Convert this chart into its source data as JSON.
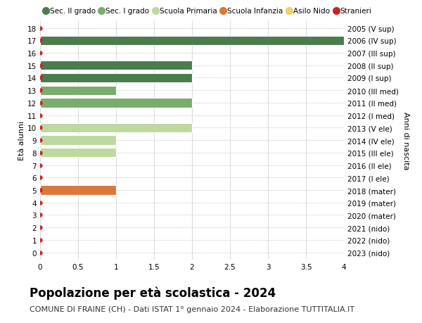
{
  "title": "Popolazione per età scolastica - 2024",
  "subtitle": "COMUNE DI FRAINE (CH) - Dati ISTAT 1° gennaio 2024 - Elaborazione TUTTITALIA.IT",
  "ylabel_left": "Età alunni",
  "ylabel_right": "Anni di nascita",
  "xlim": [
    0,
    4.0
  ],
  "xticks": [
    0,
    0.5,
    1.0,
    1.5,
    2.0,
    2.5,
    3.0,
    3.5,
    4.0
  ],
  "ages": [
    0,
    1,
    2,
    3,
    4,
    5,
    6,
    7,
    8,
    9,
    10,
    11,
    12,
    13,
    14,
    15,
    16,
    17,
    18
  ],
  "right_labels": [
    "2023 (nido)",
    "2022 (nido)",
    "2021 (nido)",
    "2020 (mater)",
    "2019 (mater)",
    "2018 (mater)",
    "2017 (I ele)",
    "2016 (II ele)",
    "2015 (III ele)",
    "2014 (IV ele)",
    "2013 (V ele)",
    "2012 (I med)",
    "2011 (II med)",
    "2010 (III med)",
    "2009 (I sup)",
    "2008 (II sup)",
    "2007 (III sup)",
    "2006 (IV sup)",
    "2005 (V sup)"
  ],
  "bars": [
    {
      "age": 17,
      "value": 4.0,
      "color": "#4a7c4e"
    },
    {
      "age": 15,
      "value": 2.0,
      "color": "#4a7c4e"
    },
    {
      "age": 14,
      "value": 2.0,
      "color": "#4a7c4e"
    },
    {
      "age": 13,
      "value": 1.0,
      "color": "#7aac6e"
    },
    {
      "age": 12,
      "value": 2.0,
      "color": "#7aac6e"
    },
    {
      "age": 10,
      "value": 2.0,
      "color": "#bdd9a0"
    },
    {
      "age": 9,
      "value": 1.0,
      "color": "#bdd9a0"
    },
    {
      "age": 8,
      "value": 1.0,
      "color": "#bdd9a0"
    },
    {
      "age": 5,
      "value": 1.0,
      "color": "#d9793b"
    }
  ],
  "stranieri_ages": [
    0,
    1,
    2,
    3,
    4,
    5,
    6,
    7,
    8,
    9,
    10,
    11,
    12,
    13,
    14,
    15,
    16,
    17,
    18
  ],
  "stranieri_color": "#cc2222",
  "legend_entries": [
    {
      "label": "Sec. II grado",
      "color": "#4a7c4e"
    },
    {
      "label": "Sec. I grado",
      "color": "#7aac6e"
    },
    {
      "label": "Scuola Primaria",
      "color": "#bdd9a0"
    },
    {
      "label": "Scuola Infanzia",
      "color": "#d9793b"
    },
    {
      "label": "Asilo Nido",
      "color": "#f0d060"
    },
    {
      "label": "Stranieri",
      "color": "#cc2222"
    }
  ],
  "background_color": "#ffffff",
  "grid_color": "#cccccc",
  "bar_height": 0.75,
  "title_fontsize": 12,
  "subtitle_fontsize": 8,
  "tick_fontsize": 7.5,
  "legend_fontsize": 7.5
}
